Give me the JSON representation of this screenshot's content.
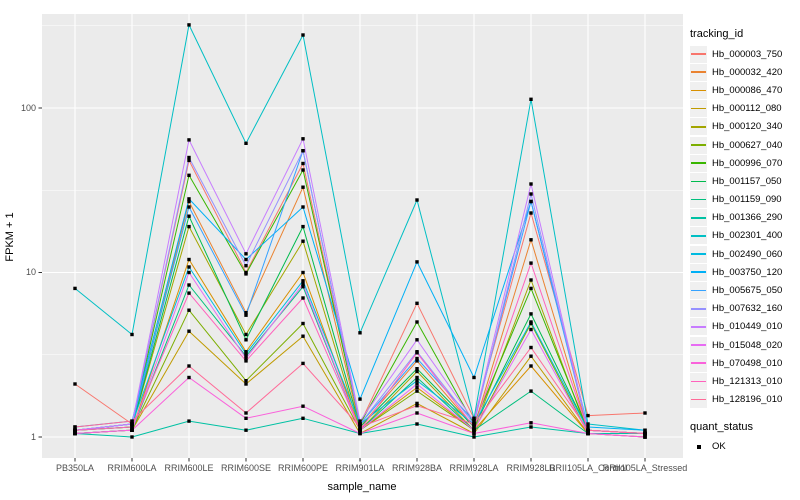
{
  "chart_data": {
    "type": "line",
    "title": "",
    "xlabel": "sample_name",
    "ylabel": "FPKM + 1",
    "y_scale": "log10",
    "y_ticks": [
      1,
      10,
      100
    ],
    "y_minor_ticks": [
      3.162,
      31.623,
      316.228
    ],
    "ylim": [
      0.75,
      372
    ],
    "grid": true,
    "legend_position": "right",
    "point_shape": "black-square",
    "categories": [
      "PB350LA",
      "RRIM600LA",
      "RRIM600LE",
      "RRIM600SE",
      "RRIM600PE",
      "RRIM901LA",
      "RRIM928BA",
      "RRIM928LA",
      "RRIM928LB",
      "RRII105LA_Control",
      "RRII105LA_Stressed"
    ],
    "series": [
      {
        "name": "Hb_000003_750",
        "color": "#F8766D",
        "values": [
          2.1,
          1.2,
          48,
          10,
          46,
          1.2,
          6.5,
          1.3,
          23,
          1.35,
          1.4
        ]
      },
      {
        "name": "Hb_000032_420",
        "color": "#EA8331",
        "values": [
          1.1,
          1.15,
          27,
          5.7,
          33,
          1.15,
          2.9,
          1.15,
          15.8,
          1.1,
          1.05
        ]
      },
      {
        "name": "Hb_000086_470",
        "color": "#D89000",
        "values": [
          1.05,
          1.1,
          12,
          3.3,
          10,
          1.1,
          2.0,
          1.1,
          2.7,
          1.05,
          1.05
        ]
      },
      {
        "name": "Hb_000112_080",
        "color": "#C09B00",
        "values": [
          1.05,
          1.1,
          4.4,
          2.1,
          4.1,
          1.05,
          1.6,
          1.05,
          3.1,
          1.05,
          1.0
        ]
      },
      {
        "name": "Hb_000120_340",
        "color": "#A3A500",
        "values": [
          1.1,
          1.15,
          19,
          4.2,
          15.5,
          1.1,
          2.5,
          1.1,
          9,
          1.05,
          1.05
        ]
      },
      {
        "name": "Hb_000627_040",
        "color": "#7CAE00",
        "values": [
          1.05,
          1.1,
          5.9,
          2.2,
          4.9,
          1.1,
          1.9,
          1.1,
          4.9,
          1.05,
          1.0
        ]
      },
      {
        "name": "Hb_000996_070",
        "color": "#39B600",
        "values": [
          1.1,
          1.2,
          39,
          9.8,
          42,
          1.2,
          5.0,
          1.2,
          8,
          1.1,
          1.05
        ]
      },
      {
        "name": "Hb_001157_050",
        "color": "#00BB4E",
        "values": [
          1.1,
          1.15,
          22,
          3.9,
          19,
          1.15,
          2.6,
          1.15,
          5.6,
          1.1,
          1.05
        ]
      },
      {
        "name": "Hb_001159_090",
        "color": "#00BF7D",
        "values": [
          1.05,
          1.1,
          8.4,
          3.1,
          8.2,
          1.1,
          2.3,
          1.1,
          1.9,
          1.05,
          1.05
        ]
      },
      {
        "name": "Hb_001366_290",
        "color": "#00C1A3",
        "values": [
          1.05,
          1.0,
          1.25,
          1.1,
          1.3,
          1.05,
          1.2,
          1.0,
          1.15,
          1.05,
          1.05
        ]
      },
      {
        "name": "Hb_002301_400",
        "color": "#00BFC4",
        "values": [
          8,
          4.2,
          320,
          61,
          278,
          4.3,
          27.6,
          1.3,
          113,
          1.2,
          1.1
        ]
      },
      {
        "name": "Hb_002490_060",
        "color": "#00BAE0",
        "values": [
          1.1,
          1.2,
          10.8,
          3.2,
          8.9,
          1.2,
          2.2,
          1.2,
          5,
          1.1,
          1.05
        ]
      },
      {
        "name": "Hb_003750_120",
        "color": "#00B0F6",
        "values": [
          1.15,
          1.25,
          28,
          12,
          25,
          1.7,
          11.6,
          2.3,
          27,
          1.15,
          1.1
        ]
      },
      {
        "name": "Hb_005675_050",
        "color": "#35A2FF",
        "values": [
          1.1,
          1.2,
          25,
          5.5,
          55,
          1.2,
          3.0,
          1.25,
          27,
          1.1,
          1.05
        ]
      },
      {
        "name": "Hb_007632_160",
        "color": "#9590FF",
        "values": [
          1.1,
          1.2,
          50,
          11,
          55,
          1.2,
          3.3,
          1.2,
          30,
          1.1,
          1.05
        ]
      },
      {
        "name": "Hb_010449_010",
        "color": "#C77CFF",
        "values": [
          1.1,
          1.2,
          64,
          13,
          65,
          1.25,
          3.9,
          1.25,
          34.5,
          1.1,
          1.05
        ]
      },
      {
        "name": "Hb_015048_020",
        "color": "#E76BF3",
        "values": [
          1.05,
          1.1,
          10,
          3.0,
          8.5,
          1.1,
          2.1,
          1.1,
          4.5,
          1.05,
          1.0
        ]
      },
      {
        "name": "Hb_070498_010",
        "color": "#FA62DB",
        "values": [
          1.05,
          1.1,
          2.3,
          1.3,
          1.54,
          1.05,
          1.4,
          1.05,
          1.22,
          1.05,
          1.0
        ]
      },
      {
        "name": "Hb_121313_010",
        "color": "#FF62BC",
        "values": [
          1.1,
          1.15,
          7.5,
          2.9,
          7,
          1.1,
          3.25,
          1.15,
          11.4,
          1.1,
          1.05
        ]
      },
      {
        "name": "Hb_128196_010",
        "color": "#FF6A98",
        "values": [
          1.15,
          1.25,
          2.7,
          1.4,
          2.8,
          1.15,
          1.55,
          1.2,
          3.5,
          1.1,
          1.05
        ]
      }
    ]
  },
  "legend": {
    "tracking_title": "tracking_id",
    "quant_title": "quant_status",
    "quant_items": [
      {
        "label": "OK"
      }
    ]
  },
  "colors": {
    "panel_bg": "#EBEBEB",
    "grid": "#FFFFFF",
    "axis_text": "#4D4D4D",
    "title_text": "#000000",
    "tick_mark": "#333333",
    "point": "#000000",
    "legend_key_bg": "#F0F0F0"
  }
}
